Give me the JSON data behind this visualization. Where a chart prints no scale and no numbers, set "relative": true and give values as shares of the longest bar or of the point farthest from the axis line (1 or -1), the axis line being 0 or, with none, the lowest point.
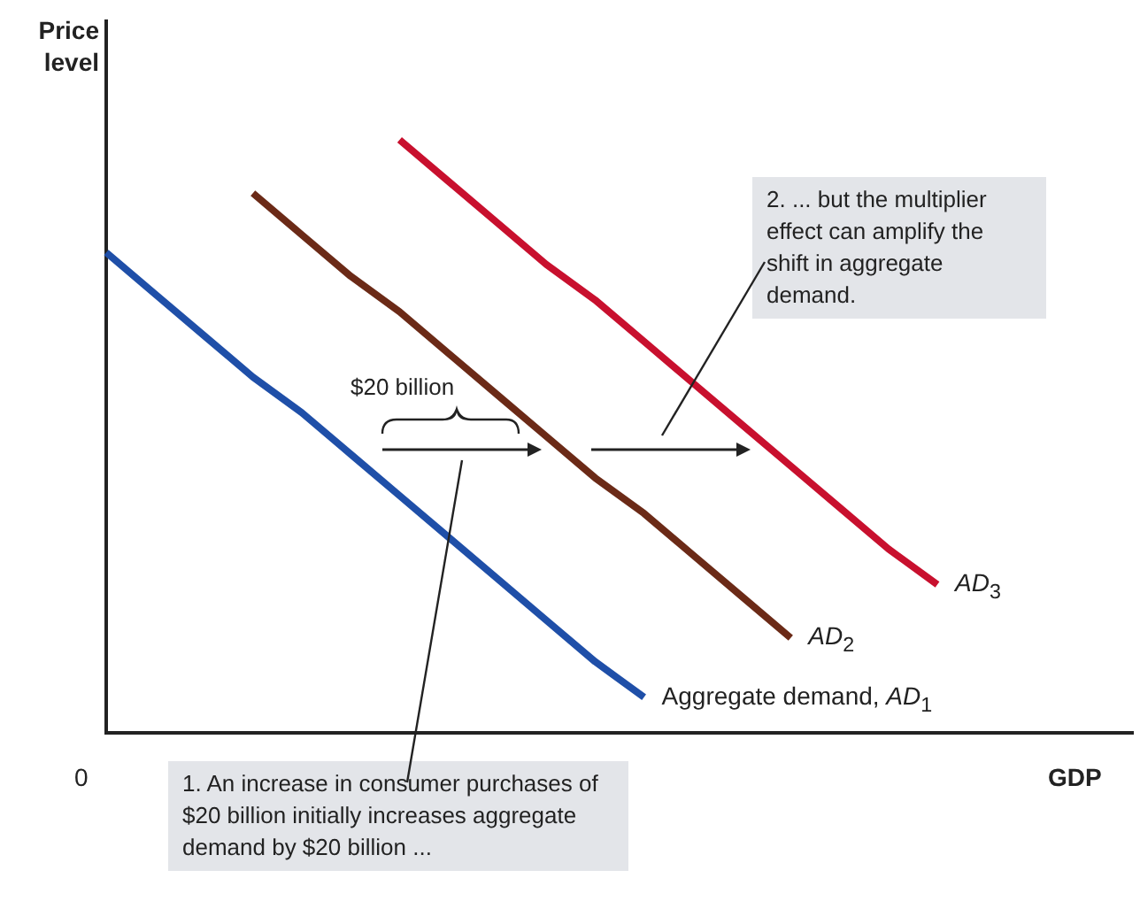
{
  "chart_data": {
    "type": "line",
    "relative": true,
    "ylabel": "Price level",
    "xlabel": "GDP",
    "categories": [
      null,
      null,
      null,
      null,
      null,
      null,
      null,
      null,
      null,
      null,
      null,
      null,
      null,
      null,
      null,
      null,
      null,
      null,
      null,
      null,
      null,
      null
    ],
    "series": [
      {
        "name": "Aggregate demand, AD$_{1}$",
        "color": "#1f4fa8",
        "values": [
          0.81,
          0.74,
          0.67,
          0.6,
          0.54,
          0.47,
          0.4,
          0.33,
          0.26,
          0.19,
          0.12,
          0.06,
          null,
          null,
          null,
          null,
          null,
          null,
          null,
          null,
          null,
          null
        ]
      },
      {
        "name": "AD$_{2}$",
        "color": "#6b2a17",
        "values": [
          null,
          null,
          null,
          0.91,
          0.84,
          0.77,
          0.71,
          0.64,
          0.57,
          0.5,
          0.43,
          0.37,
          0.3,
          0.23,
          0.16,
          null,
          null,
          null,
          null,
          null,
          null,
          null
        ]
      },
      {
        "name": "AD$_{3}$",
        "color": "#c8102e",
        "values": [
          null,
          null,
          null,
          null,
          null,
          null,
          1.0,
          0.93,
          0.86,
          0.79,
          0.73,
          0.66,
          0.59,
          0.52,
          0.45,
          0.38,
          0.31,
          0.25,
          null,
          null,
          null,
          null
        ]
      }
    ],
    "annotations": [
      "0",
      "$20 billion",
      "1. An increase in consumer purchases of $20 billion initially increases aggregate demand by $20 billion ...",
      "2. ... but the multiplier effect can amplify the shift in aggregate demand."
    ],
    "marker": "none",
    "grid": false,
    "legend": false
  }
}
